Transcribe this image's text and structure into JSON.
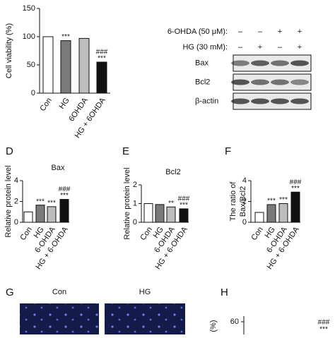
{
  "chart_data": [
    {
      "type": "bar",
      "ylabel": "Cell viability (%)",
      "categories": [
        "Con",
        "HG",
        "6OHDA",
        "HG + 6OHDA"
      ],
      "values": [
        100,
        93,
        97,
        55
      ],
      "colors": [
        "#ffffff",
        "#7a7a7a",
        "#bdbdbd",
        "#111111"
      ],
      "annotations": [
        [],
        [
          "***"
        ],
        [],
        [
          "###",
          "***"
        ]
      ],
      "ylim": [
        0,
        150
      ],
      "yticks": [
        0,
        50,
        100,
        150
      ]
    },
    {
      "type": "bar",
      "panel": "D",
      "title": "Bax",
      "ylabel": "Relative protein level",
      "categories": [
        "Con",
        "HG",
        "6-OHDA",
        "HG + 6-OHDA"
      ],
      "values": [
        1,
        1.65,
        1.5,
        2.2
      ],
      "colors": [
        "#ffffff",
        "#7a7a7a",
        "#bdbdbd",
        "#111111"
      ],
      "annotations": [
        [],
        [
          "***"
        ],
        [
          "***"
        ],
        [
          "###",
          "***"
        ]
      ],
      "ylim": [
        0,
        4
      ],
      "yticks": [
        0,
        2,
        4
      ]
    },
    {
      "type": "bar",
      "panel": "E",
      "title": "Bcl2",
      "ylabel": "Relative protein level",
      "categories": [
        "Con",
        "HG",
        "6-OHDA",
        "HG + 6-OHDA"
      ],
      "values": [
        1,
        0.95,
        0.82,
        0.72
      ],
      "colors": [
        "#ffffff",
        "#7a7a7a",
        "#bdbdbd",
        "#111111"
      ],
      "annotations": [
        [],
        [],
        [
          "**"
        ],
        [
          "###",
          "***"
        ]
      ],
      "ylim": [
        0,
        2
      ],
      "yticks": [
        0,
        1,
        2
      ]
    },
    {
      "type": "bar",
      "panel": "F",
      "ylabel": [
        "The ratio of",
        "Bax/Bcl2"
      ],
      "categories": [
        "Con",
        "HG",
        "6-OHDA",
        "HG + 6-OHDA"
      ],
      "values": [
        0.95,
        1.7,
        1.8,
        2.9
      ],
      "colors": [
        "#ffffff",
        "#7a7a7a",
        "#bdbdbd",
        "#111111"
      ],
      "annotations": [
        [],
        [
          "***"
        ],
        [
          "***"
        ],
        [
          "###",
          "***"
        ]
      ],
      "ylim": [
        0,
        4
      ],
      "yticks": [
        0,
        2,
        4
      ]
    }
  ],
  "blot": {
    "conditions": [
      {
        "label": "6-OHDA (50 μM):",
        "signs": [
          "–",
          "–",
          "+",
          "+"
        ]
      },
      {
        "label": "HG (30 mM):",
        "signs": [
          "–",
          "+",
          "–",
          "+"
        ]
      }
    ],
    "rows": [
      "Bax",
      "Bcl2",
      "β-actin"
    ]
  },
  "panel_g": {
    "panel": "G",
    "labels": [
      "Con",
      "HG"
    ]
  },
  "panel_h": {
    "panel": "H",
    "ylabel": "(%)",
    "tick": 60,
    "annotations": [
      "###",
      "***"
    ]
  }
}
